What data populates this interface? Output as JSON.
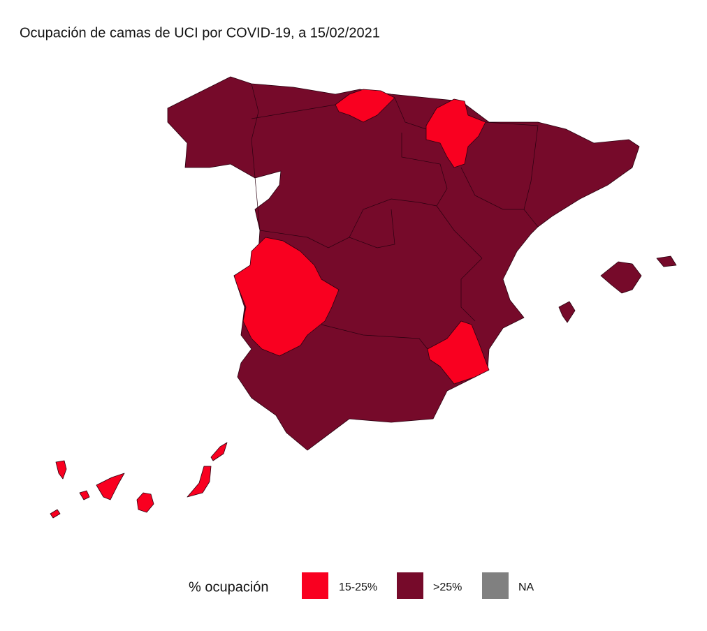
{
  "title": "Ocupación de camas de UCI por COVID-19, a 15/02/2021",
  "legend": {
    "title": "% ocupación",
    "items": [
      {
        "label": "15-25%",
        "color": "#f90020"
      },
      {
        "label": ">25%",
        "color": "#760a2a"
      },
      {
        "label": "NA",
        "color": "#808080"
      }
    ]
  }
}
